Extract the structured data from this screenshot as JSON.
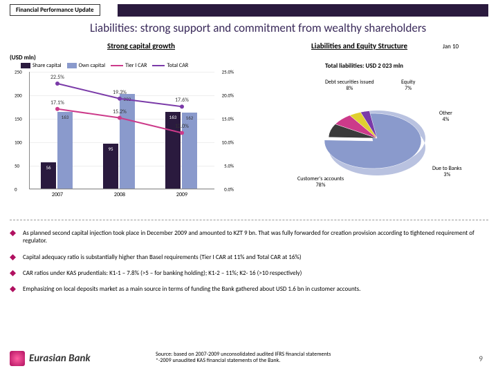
{
  "header": {
    "tab": "Financial Performance Update"
  },
  "title": "Liabilities: strong support and commitment from wealthy shareholders",
  "subtitles": {
    "left": "Strong capital growth",
    "right": "Liabilities and Equity Structure",
    "date": "Jan 10"
  },
  "usd_label": "(USD mln)",
  "total_liab": "Total liabilities: USD 2 023 mln",
  "bar_chart": {
    "legend": [
      "Share capital",
      "Own capital",
      "Tier I CAR",
      "Total CAR"
    ],
    "legend_colors": [
      "#2a1a3e",
      "#8a9acc",
      "#cc3a8a",
      "#7a3aa8"
    ],
    "categories": [
      "2007",
      "2008",
      "2009"
    ],
    "share_capital": [
      56,
      95,
      163
    ],
    "own_capital": [
      163,
      202,
      162
    ],
    "tier1": [
      17.1,
      15.2,
      12.0
    ],
    "total": [
      22.5,
      19.3,
      17.6
    ],
    "y_left_max": 250,
    "y_left_step": 50,
    "y_right_max": 25,
    "y_right_step": 5,
    "bar_color1": "#2a1a3e",
    "bar_color2": "#8a9acc",
    "line_color1": "#cc3a8a",
    "line_color2": "#7a3aa8",
    "bg": "#ffffff"
  },
  "pie_chart": {
    "slices": [
      {
        "label": "Customer's accounts",
        "pct": 78,
        "color": "#8a9acc"
      },
      {
        "label": "Debt securities issued",
        "pct": 8,
        "color": "#3a3a3a"
      },
      {
        "label": "Equity",
        "pct": 7,
        "color": "#cc3a8a"
      },
      {
        "label": "Other",
        "pct": 4,
        "color": "#e0d030"
      },
      {
        "label": "Due to Banks",
        "pct": 3,
        "color": "#7a3aa8"
      }
    ]
  },
  "bullets": [
    "As planned second capital injection took place in December 2009 and amounted to KZT 9 bn. That was fully forwarded for creation provision according to tightened requirement of regulator.",
    "Capital adequacy ratio is substantially higher than Basel requirements (Tier I CAR at 11% and Total CAR at 16%)",
    "CAR ratios under  KAS prudentials: K1-1 – 7.8% (>5 – for banking holding); K1-2 – 11%; K2- 16 (>10 respectively)",
    "Emphasizing on local deposits market as a main source in terms of funding the Bank gathered about USD 1.6 bn in customer accounts."
  ],
  "source": {
    "l1": "Source: based on 2007-2009 unconsolidated audited IFRS financial statements",
    "l2": "*-2009 unaudited KAS financial statements of the Bank."
  },
  "logo": "Eurasian Bank",
  "page": "9",
  "diamond_color": "#b01060"
}
